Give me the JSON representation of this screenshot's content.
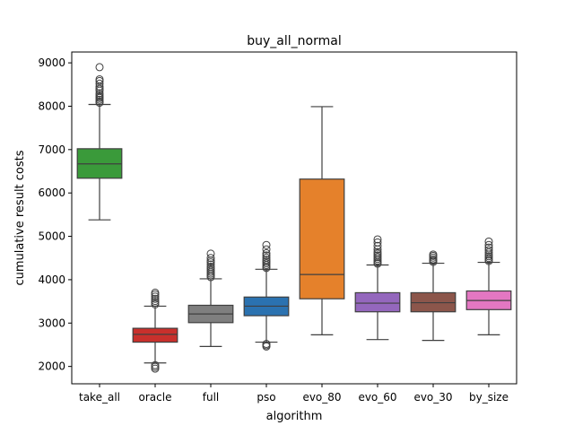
{
  "chart_data": {
    "type": "box",
    "title": "buy_all_normal",
    "xlabel": "algorithm",
    "ylabel": "cumulative result costs",
    "ylim": [
      1600,
      9250
    ],
    "yticks": [
      2000,
      3000,
      4000,
      5000,
      6000,
      7000,
      8000,
      9000
    ],
    "ytick_labels": [
      "2000",
      "3000",
      "4000",
      "5000",
      "6000",
      "7000",
      "8000",
      "9000"
    ],
    "grid": false,
    "legend": "none",
    "categories": [
      "take_all",
      "oracle",
      "full",
      "pso",
      "evo_80",
      "evo_60",
      "evo_30",
      "by_size"
    ],
    "boxes": [
      {
        "whisker_low": 5380,
        "q1": 6340,
        "median": 6670,
        "q3": 7020,
        "whisker_high": 8040,
        "fliers": [
          8080,
          8110,
          8150,
          8190,
          8220,
          8260,
          8300,
          8360,
          8400,
          8450,
          8520,
          8580,
          8620,
          8900
        ]
      },
      {
        "whisker_low": 2080,
        "q1": 2560,
        "median": 2740,
        "q3": 2880,
        "whisker_high": 3390,
        "fliers": [
          1950,
          1990,
          2030,
          3430,
          3470,
          3510,
          3560,
          3610,
          3660,
          3700
        ]
      },
      {
        "whisker_low": 2460,
        "q1": 3010,
        "median": 3210,
        "q3": 3410,
        "whisker_high": 4020,
        "fliers": [
          4060,
          4100,
          4140,
          4180,
          4220,
          4260,
          4300,
          4350,
          4400,
          4440,
          4500,
          4600
        ]
      },
      {
        "whisker_low": 2560,
        "q1": 3170,
        "median": 3390,
        "q3": 3600,
        "whisker_high": 4240,
        "fliers": [
          2460,
          2490,
          2520,
          4270,
          4300,
          4340,
          4380,
          4420,
          4460,
          4510,
          4560,
          4610,
          4700,
          4800
        ]
      },
      {
        "whisker_low": 2730,
        "q1": 3560,
        "median": 4120,
        "q3": 6320,
        "whisker_high": 7990,
        "fliers": []
      },
      {
        "whisker_low": 2620,
        "q1": 3260,
        "median": 3460,
        "q3": 3700,
        "whisker_high": 4340,
        "fliers": [
          4370,
          4400,
          4440,
          4480,
          4520,
          4560,
          4600,
          4640,
          4700,
          4780,
          4860,
          4930
        ]
      },
      {
        "whisker_low": 2600,
        "q1": 3260,
        "median": 3470,
        "q3": 3700,
        "whisker_high": 4380,
        "fliers": [
          4410,
          4440,
          4470,
          4510,
          4550,
          4580
        ]
      },
      {
        "whisker_low": 2730,
        "q1": 3310,
        "median": 3520,
        "q3": 3740,
        "whisker_high": 4400,
        "fliers": [
          4430,
          4460,
          4500,
          4540,
          4580,
          4630,
          4680,
          4740,
          4800,
          4880
        ]
      }
    ],
    "colors": [
      "#3a9a3a",
      "#c9302c",
      "#7f7f7f",
      "#2b72b0",
      "#e5812b",
      "#9467bd",
      "#8c564b",
      "#e377c2"
    ]
  }
}
